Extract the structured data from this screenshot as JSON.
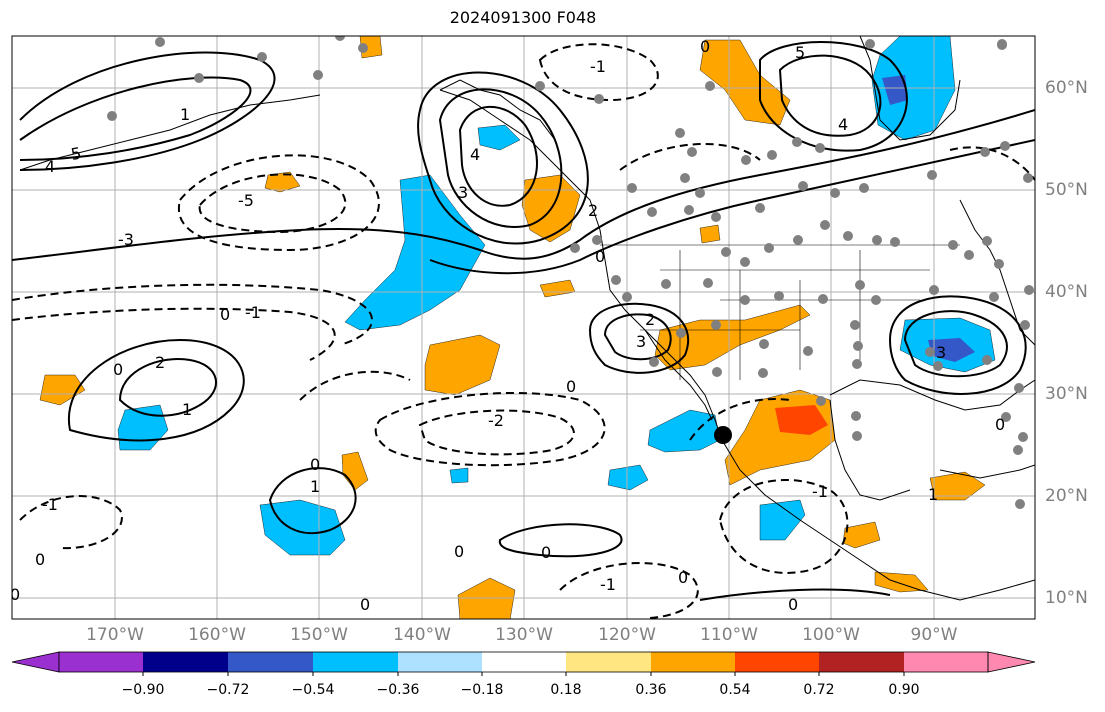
{
  "title": "2024091300 F048",
  "lon_labels": [
    "170°W",
    "160°W",
    "150°W",
    "140°W",
    "130°W",
    "120°W",
    "110°W",
    "100°W",
    "90°W"
  ],
  "lat_labels": [
    "60°N",
    "50°N",
    "40°N",
    "30°N",
    "20°N",
    "10°N"
  ],
  "colorbar": {
    "ticks": [
      "−0.90",
      "−0.72",
      "−0.54",
      "−0.36",
      "−0.18",
      "0.18",
      "0.36",
      "0.54",
      "0.72",
      "0.90"
    ],
    "colors": [
      "#9b30d0",
      "#00008b",
      "#3458c8",
      "#00bfff",
      "#aee0ff",
      "#ffffff",
      "#ffe680",
      "#ffa500",
      "#ff4500",
      "#b22222",
      "#ff88b0"
    ]
  },
  "contour_labels": [
    "5",
    "4",
    "3",
    "2",
    "1",
    "0",
    "-1",
    "-2",
    "-3",
    "-5"
  ],
  "colors": {
    "ocean": "#ffffff",
    "coast": "#000000",
    "grid": "#b0b0b0",
    "station": "#808080"
  }
}
